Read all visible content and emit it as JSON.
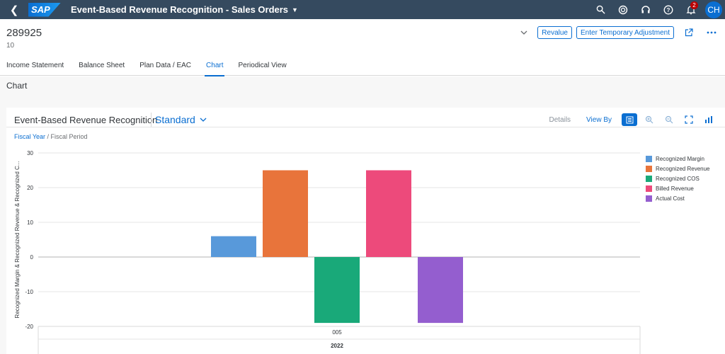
{
  "shell": {
    "logo_text": "SAP",
    "app_title": "Event-Based Revenue Recognition - Sales Orders",
    "notification_count": "2",
    "avatar_initials": "CH"
  },
  "header": {
    "title": "289925",
    "subtitle": "10",
    "revalue_label": "Revalue",
    "temp_adjust_label": "Enter Temporary Adjustment"
  },
  "tabs": [
    {
      "label": "Income Statement",
      "active": false
    },
    {
      "label": "Balance Sheet",
      "active": false
    },
    {
      "label": "Plan Data / EAC",
      "active": false
    },
    {
      "label": "Chart",
      "active": true
    },
    {
      "label": "Periodical View",
      "active": false
    }
  ],
  "section": {
    "title": "Chart"
  },
  "chart_card": {
    "title": "Event-Based Revenue Recognition",
    "variant": "Standard",
    "details_label": "Details",
    "view_by_label": "View By",
    "breadcrumb_link": "Fiscal Year",
    "breadcrumb_rest": " / Fiscal Period"
  },
  "chart_data": {
    "type": "bar",
    "categories": [
      "005"
    ],
    "group_label": "2022",
    "ylabel": "Recognized Margin & Recognized Revenue & Recognized C...",
    "ylim": [
      -20,
      30
    ],
    "yticks": [
      30,
      20,
      10,
      0,
      -10,
      -20
    ],
    "series": [
      {
        "name": "Recognized Margin",
        "color": "#5899da",
        "values": [
          6
        ]
      },
      {
        "name": "Recognized Revenue",
        "color": "#e8743b",
        "values": [
          25
        ]
      },
      {
        "name": "Recognized COS",
        "color": "#19a979",
        "values": [
          -19
        ]
      },
      {
        "name": "Billed Revenue",
        "color": "#ed4a7b",
        "values": [
          25
        ]
      },
      {
        "name": "Actual Cost",
        "color": "#945ecf",
        "values": [
          -19
        ]
      }
    ],
    "legend_position": "right",
    "grid": true
  }
}
